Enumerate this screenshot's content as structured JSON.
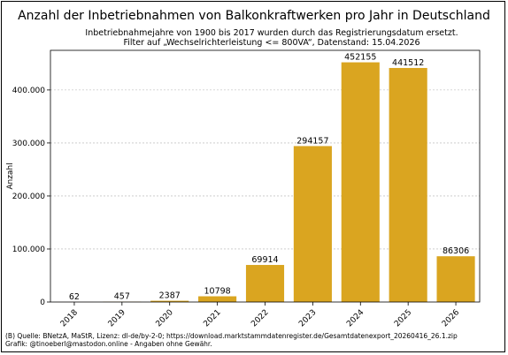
{
  "chart_data": {
    "type": "bar",
    "title": "Anzahl der Inbetriebnahmen von Balkonkraftwerken pro Jahr in Deutschland",
    "subtitle_lines": [
      "Inbetriebnahmejahre von 1900 bis 2017 wurden durch das Registrierungsdatum ersetzt.",
      "Filter auf „Wechselrichterleistung <= 800VA“, Datenstand: 15.04.2026"
    ],
    "xlabel": "",
    "ylabel": "Anzahl",
    "categories": [
      "2018",
      "2019",
      "2020",
      "2021",
      "2022",
      "2023",
      "2024",
      "2025",
      "2026"
    ],
    "values": [
      62,
      457,
      2387,
      10798,
      69914,
      294157,
      452155,
      441512,
      86306
    ],
    "data_labels": [
      "62",
      "457",
      "2387",
      "10798",
      "69914",
      "294157",
      "452155",
      "441512",
      "86306"
    ],
    "yticks": [
      0,
      100000,
      200000,
      300000,
      400000
    ],
    "ytick_labels": [
      "0",
      "100.000",
      "200.000",
      "300.000",
      "400.000"
    ],
    "ylim": [
      0,
      474763
    ],
    "grid": true,
    "bar_color": "#DAA520"
  },
  "footer": {
    "line1": "(B) Quelle: BNetzA, MaStR, Lizenz: dl-de/by-2-0; https://download.marktstammdatenregister.de/Gesamtdatenexport_20260416_26.1.zip",
    "line2": "Grafik: @tinoeberl@mastodon.online - Angaben ohne Gewähr."
  }
}
